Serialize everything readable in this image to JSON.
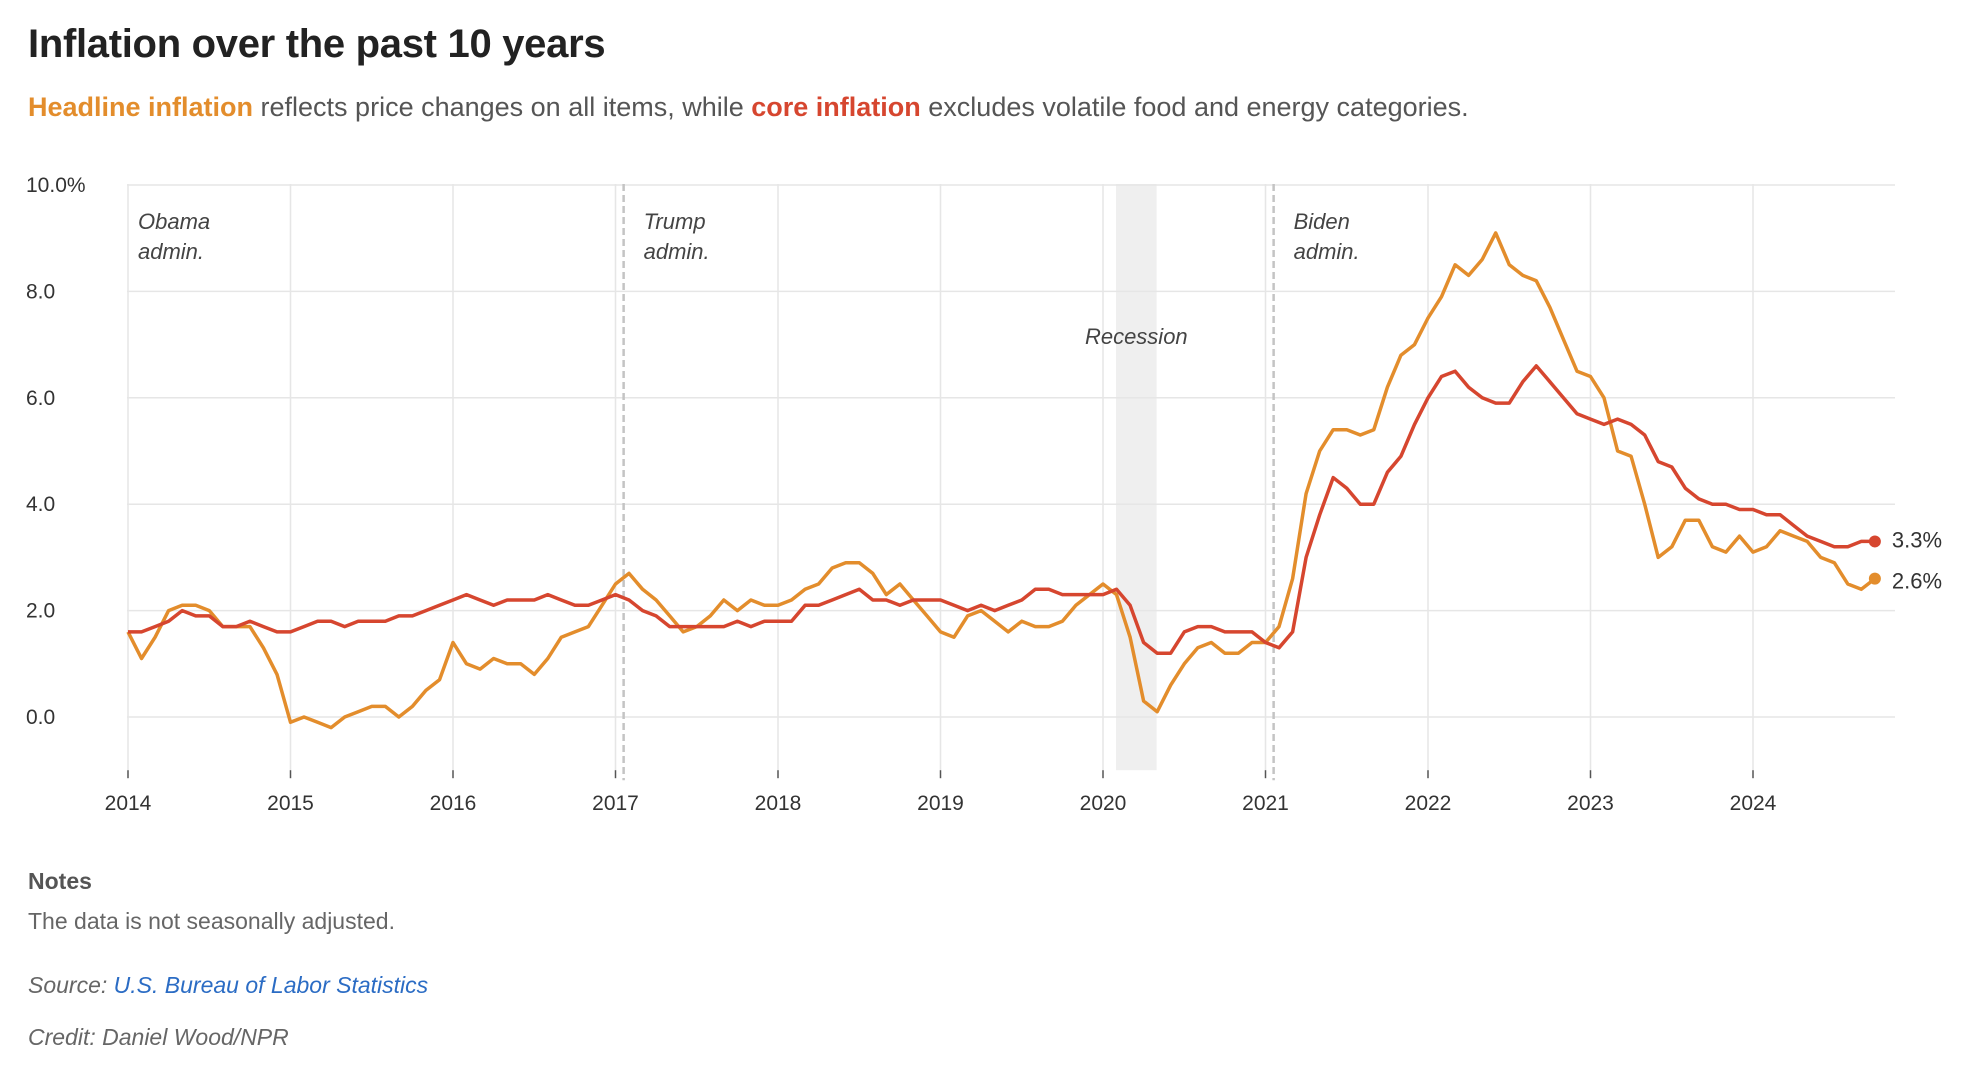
{
  "header": {
    "title": "Inflation over the past 10 years",
    "subtitle_headline": "Headline inflation",
    "subtitle_mid": " reflects price changes on all items, while ",
    "subtitle_core": "core inflation",
    "subtitle_end": " excludes volatile food and energy categories."
  },
  "colors": {
    "headline": "#e38d2c",
    "core": "#d6462f",
    "grid": "#e6e6e6",
    "recession": "#efefef",
    "divider": "#c4c4c4",
    "link": "#2b6cc4"
  },
  "chart_data": {
    "type": "line",
    "title": "Inflation over the past 10 years",
    "xlabel": "",
    "ylabel": "",
    "ylim": [
      -1,
      10
    ],
    "xlim": [
      2014,
      2024.92
    ],
    "y_ticks": [
      0,
      2,
      4,
      6,
      8,
      10
    ],
    "y_tick_labels": [
      "0.0",
      "2.0",
      "4.0",
      "6.0",
      "8.0",
      "10.0%"
    ],
    "x_ticks": [
      2014,
      2015,
      2016,
      2017,
      2018,
      2019,
      2020,
      2021,
      2022,
      2023,
      2024
    ],
    "x_tick_labels": [
      "2014",
      "2015",
      "2016",
      "2017",
      "2018",
      "2019",
      "2020",
      "2021",
      "2022",
      "2023",
      "2024"
    ],
    "grid": true,
    "administrations": [
      {
        "label_line1": "Obama",
        "label_line2": "admin.",
        "start": 2014
      },
      {
        "label_line1": "Trump",
        "label_line2": "admin.",
        "start": 2017.05
      },
      {
        "label_line1": "Biden",
        "label_line2": "admin.",
        "start": 2021.05
      }
    ],
    "recession": {
      "label": "Recession",
      "start": 2020.08,
      "end": 2020.33
    },
    "series": [
      {
        "name": "Headline inflation",
        "end_label": "2.6%",
        "values": [
          1.6,
          1.1,
          1.5,
          2.0,
          2.1,
          2.1,
          2.0,
          1.7,
          1.7,
          1.7,
          1.3,
          0.8,
          -0.1,
          0.0,
          -0.1,
          -0.2,
          0.0,
          0.1,
          0.2,
          0.2,
          0.0,
          0.2,
          0.5,
          0.7,
          1.4,
          1.0,
          0.9,
          1.1,
          1.0,
          1.0,
          0.8,
          1.1,
          1.5,
          1.6,
          1.7,
          2.1,
          2.5,
          2.7,
          2.4,
          2.2,
          1.9,
          1.6,
          1.7,
          1.9,
          2.2,
          2.0,
          2.2,
          2.1,
          2.1,
          2.2,
          2.4,
          2.5,
          2.8,
          2.9,
          2.9,
          2.7,
          2.3,
          2.5,
          2.2,
          1.9,
          1.6,
          1.5,
          1.9,
          2.0,
          1.8,
          1.6,
          1.8,
          1.7,
          1.7,
          1.8,
          2.1,
          2.3,
          2.5,
          2.3,
          1.5,
          0.3,
          0.1,
          0.6,
          1.0,
          1.3,
          1.4,
          1.2,
          1.2,
          1.4,
          1.4,
          1.7,
          2.6,
          4.2,
          5.0,
          5.4,
          5.4,
          5.3,
          5.4,
          6.2,
          6.8,
          7.0,
          7.5,
          7.9,
          8.5,
          8.3,
          8.6,
          9.1,
          8.5,
          8.3,
          8.2,
          7.7,
          7.1,
          6.5,
          6.4,
          6.0,
          5.0,
          4.9,
          4.0,
          3.0,
          3.2,
          3.7,
          3.7,
          3.2,
          3.1,
          3.4,
          3.1,
          3.2,
          3.5,
          3.4,
          3.3,
          3.0,
          2.9,
          2.5,
          2.4,
          2.6
        ]
      },
      {
        "name": "Core inflation",
        "end_label": "3.3%",
        "values": [
          1.6,
          1.6,
          1.7,
          1.8,
          2.0,
          1.9,
          1.9,
          1.7,
          1.7,
          1.8,
          1.7,
          1.6,
          1.6,
          1.7,
          1.8,
          1.8,
          1.7,
          1.8,
          1.8,
          1.8,
          1.9,
          1.9,
          2.0,
          2.1,
          2.2,
          2.3,
          2.2,
          2.1,
          2.2,
          2.2,
          2.2,
          2.3,
          2.2,
          2.1,
          2.1,
          2.2,
          2.3,
          2.2,
          2.0,
          1.9,
          1.7,
          1.7,
          1.7,
          1.7,
          1.7,
          1.8,
          1.7,
          1.8,
          1.8,
          1.8,
          2.1,
          2.1,
          2.2,
          2.3,
          2.4,
          2.2,
          2.2,
          2.1,
          2.2,
          2.2,
          2.2,
          2.1,
          2.0,
          2.1,
          2.0,
          2.1,
          2.2,
          2.4,
          2.4,
          2.3,
          2.3,
          2.3,
          2.3,
          2.4,
          2.1,
          1.4,
          1.2,
          1.2,
          1.6,
          1.7,
          1.7,
          1.6,
          1.6,
          1.6,
          1.4,
          1.3,
          1.6,
          3.0,
          3.8,
          4.5,
          4.3,
          4.0,
          4.0,
          4.6,
          4.9,
          5.5,
          6.0,
          6.4,
          6.5,
          6.2,
          6.0,
          5.9,
          5.9,
          6.3,
          6.6,
          6.3,
          6.0,
          5.7,
          5.6,
          5.5,
          5.6,
          5.5,
          5.3,
          4.8,
          4.7,
          4.3,
          4.1,
          4.0,
          4.0,
          3.9,
          3.9,
          3.8,
          3.8,
          3.6,
          3.4,
          3.3,
          3.2,
          3.2,
          3.3,
          3.3
        ]
      }
    ]
  },
  "notes": {
    "heading": "Notes",
    "text": "The data is not seasonally adjusted."
  },
  "source": {
    "prefix": "Source: ",
    "link_text": "U.S. Bureau of Labor Statistics"
  },
  "credit": {
    "text": "Credit: Daniel Wood/NPR"
  }
}
